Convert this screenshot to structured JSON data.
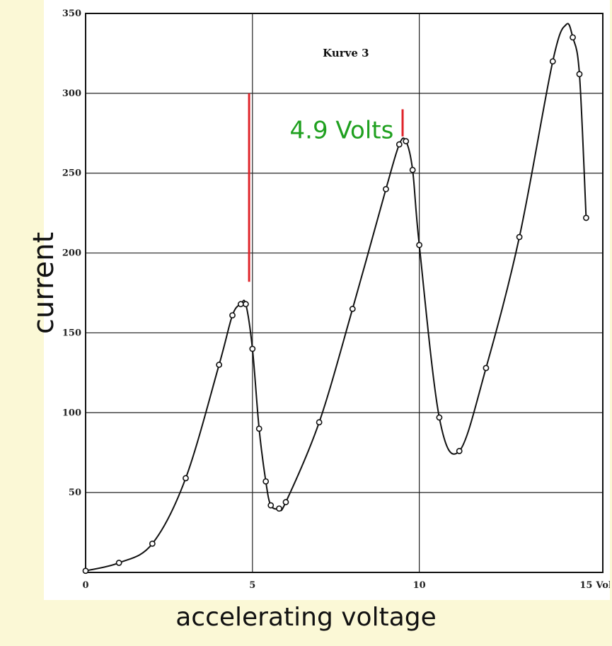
{
  "chart_data": {
    "type": "line",
    "title": "Kurve 3",
    "xlabel": "accelerating voltage",
    "ylabel": "current",
    "x_unit_label": "Volt",
    "xlim": [
      0,
      15.5
    ],
    "ylim": [
      0,
      350
    ],
    "x_ticks": [
      0,
      5,
      10,
      15
    ],
    "y_ticks": [
      50,
      100,
      150,
      200,
      250,
      300,
      350
    ],
    "grid": true,
    "grid_x": [
      5,
      10
    ],
    "grid_y": [
      50,
      100,
      150,
      200,
      250,
      300,
      350
    ],
    "series": [
      {
        "points": [
          [
            0,
            1
          ],
          [
            1,
            6
          ],
          [
            2,
            18
          ],
          [
            3,
            59
          ],
          [
            4,
            130
          ],
          [
            4.4,
            161
          ],
          [
            4.65,
            168
          ],
          [
            4.8,
            168
          ],
          [
            5.0,
            140
          ],
          [
            5.2,
            90
          ],
          [
            5.4,
            57
          ],
          [
            5.55,
            42
          ],
          [
            5.8,
            40
          ],
          [
            6.0,
            44
          ],
          [
            7.0,
            94
          ],
          [
            8.0,
            165
          ],
          [
            9.0,
            240
          ],
          [
            9.4,
            268
          ],
          [
            9.6,
            270
          ],
          [
            9.8,
            252
          ],
          [
            10.0,
            205
          ],
          [
            10.6,
            97
          ],
          [
            11.2,
            76
          ],
          [
            12.0,
            128
          ],
          [
            13.0,
            210
          ],
          [
            14.0,
            320
          ],
          [
            14.4,
            343
          ],
          [
            14.6,
            335
          ],
          [
            14.8,
            312
          ],
          [
            15.0,
            222
          ]
        ],
        "markers": [
          [
            0,
            1
          ],
          [
            1,
            6
          ],
          [
            2,
            18
          ],
          [
            3,
            59
          ],
          [
            4,
            130
          ],
          [
            4.4,
            161
          ],
          [
            4.65,
            168
          ],
          [
            4.8,
            168
          ],
          [
            5.0,
            140
          ],
          [
            5.2,
            90
          ],
          [
            5.4,
            57
          ],
          [
            5.55,
            42
          ],
          [
            5.8,
            40
          ],
          [
            6.0,
            44
          ],
          [
            7.0,
            94
          ],
          [
            8.0,
            165
          ],
          [
            9.0,
            240
          ],
          [
            9.4,
            268
          ],
          [
            9.6,
            270
          ],
          [
            9.8,
            252
          ],
          [
            10.0,
            205
          ],
          [
            10.6,
            97
          ],
          [
            11.2,
            76
          ],
          [
            12.0,
            128
          ],
          [
            13.0,
            210
          ],
          [
            14.0,
            320
          ],
          [
            14.6,
            335
          ],
          [
            14.8,
            312
          ],
          [
            15.0,
            222
          ]
        ]
      }
    ],
    "annotations": [
      {
        "text": "4.9 Volts",
        "color": "#1fa01f"
      }
    ],
    "markers_lines": [
      {
        "x": 4.9,
        "y1": 182,
        "y2": 300,
        "color": "#e0242a"
      },
      {
        "x": 9.5,
        "y1": 273,
        "y2": 290,
        "color": "#e0242a"
      }
    ]
  }
}
